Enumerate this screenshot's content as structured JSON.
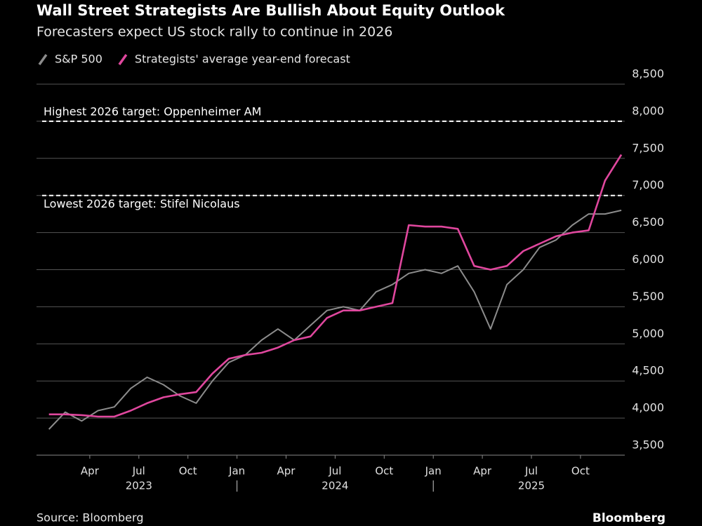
{
  "chart_data": {
    "type": "line",
    "title": "Wall Street Strategists Are Bullish About Equity Outlook",
    "subtitle": "Forecasters expect US stock rally to continue in 2026",
    "source": "Source: Bloomberg",
    "brand": "Bloomberg",
    "x": [
      "2023-01",
      "2023-02",
      "2023-03",
      "2023-04",
      "2023-05",
      "2023-06",
      "2023-07",
      "2023-08",
      "2023-09",
      "2023-10",
      "2023-11",
      "2023-12",
      "2024-01",
      "2024-02",
      "2024-03",
      "2024-04",
      "2024-05",
      "2024-06",
      "2024-07",
      "2024-08",
      "2024-09",
      "2024-10",
      "2024-11",
      "2024-12",
      "2025-01",
      "2025-02",
      "2025-03",
      "2025-04",
      "2025-05",
      "2025-06",
      "2025-07",
      "2025-08",
      "2025-09",
      "2025-10",
      "2025-11",
      "2025-12"
    ],
    "series": [
      {
        "name": "S&P 500",
        "color": "#8c8c8c",
        "values": [
          3850,
          4080,
          3960,
          4100,
          4150,
          4400,
          4550,
          4450,
          4300,
          4200,
          4500,
          4750,
          4850,
          5050,
          5200,
          5050,
          5250,
          5450,
          5500,
          5450,
          5700,
          5800,
          5950,
          6000,
          5950,
          6050,
          5700,
          5200,
          5800,
          6000,
          6300,
          6400,
          6600,
          6750,
          6750,
          6800
        ]
      },
      {
        "name": "Strategists' average year-end forecast",
        "color": "#e0479e",
        "values": [
          4050,
          4050,
          4040,
          4020,
          4020,
          4100,
          4200,
          4280,
          4320,
          4350,
          4600,
          4800,
          4850,
          4880,
          4950,
          5050,
          5100,
          5350,
          5450,
          5450,
          5500,
          5550,
          6600,
          6580,
          6580,
          6550,
          6050,
          6000,
          6050,
          6250,
          6350,
          6450,
          6500,
          6530,
          7200,
          7550
        ]
      }
    ],
    "reference_lines": [
      {
        "value": 8000,
        "label": "Highest 2026 target: Oppenheimer AM"
      },
      {
        "value": 7000,
        "label": "Lowest 2026 target: Stifel Nicolaus"
      }
    ],
    "ylim": [
      3500,
      8500
    ],
    "yticks": [
      {
        "value": 3500,
        "label": "3,500"
      },
      {
        "value": 4000,
        "label": "4,000"
      },
      {
        "value": 4500,
        "label": "4,500"
      },
      {
        "value": 5000,
        "label": "5,000"
      },
      {
        "value": 5500,
        "label": "5,500"
      },
      {
        "value": 6000,
        "label": "6,000"
      },
      {
        "value": 6500,
        "label": "6,500"
      },
      {
        "value": 7000,
        "label": "7,000"
      },
      {
        "value": 7500,
        "label": "7,500"
      },
      {
        "value": 8000,
        "label": "8,000"
      },
      {
        "value": 8500,
        "label": "8,500"
      }
    ],
    "xticks": [
      {
        "value": "2023-04",
        "label": "Apr"
      },
      {
        "value": "2023-07",
        "label": "Jul"
      },
      {
        "value": "2023-10",
        "label": "Oct"
      },
      {
        "value": "2024-01",
        "label": "Jan"
      },
      {
        "value": "2024-04",
        "label": "Apr"
      },
      {
        "value": "2024-07",
        "label": "Jul"
      },
      {
        "value": "2024-10",
        "label": "Oct"
      },
      {
        "value": "2025-01",
        "label": "Jan"
      },
      {
        "value": "2025-04",
        "label": "Apr"
      },
      {
        "value": "2025-07",
        "label": "Jul"
      },
      {
        "value": "2025-10",
        "label": "Oct"
      }
    ],
    "years": [
      "2023",
      "2024",
      "2025"
    ],
    "grid": true
  }
}
